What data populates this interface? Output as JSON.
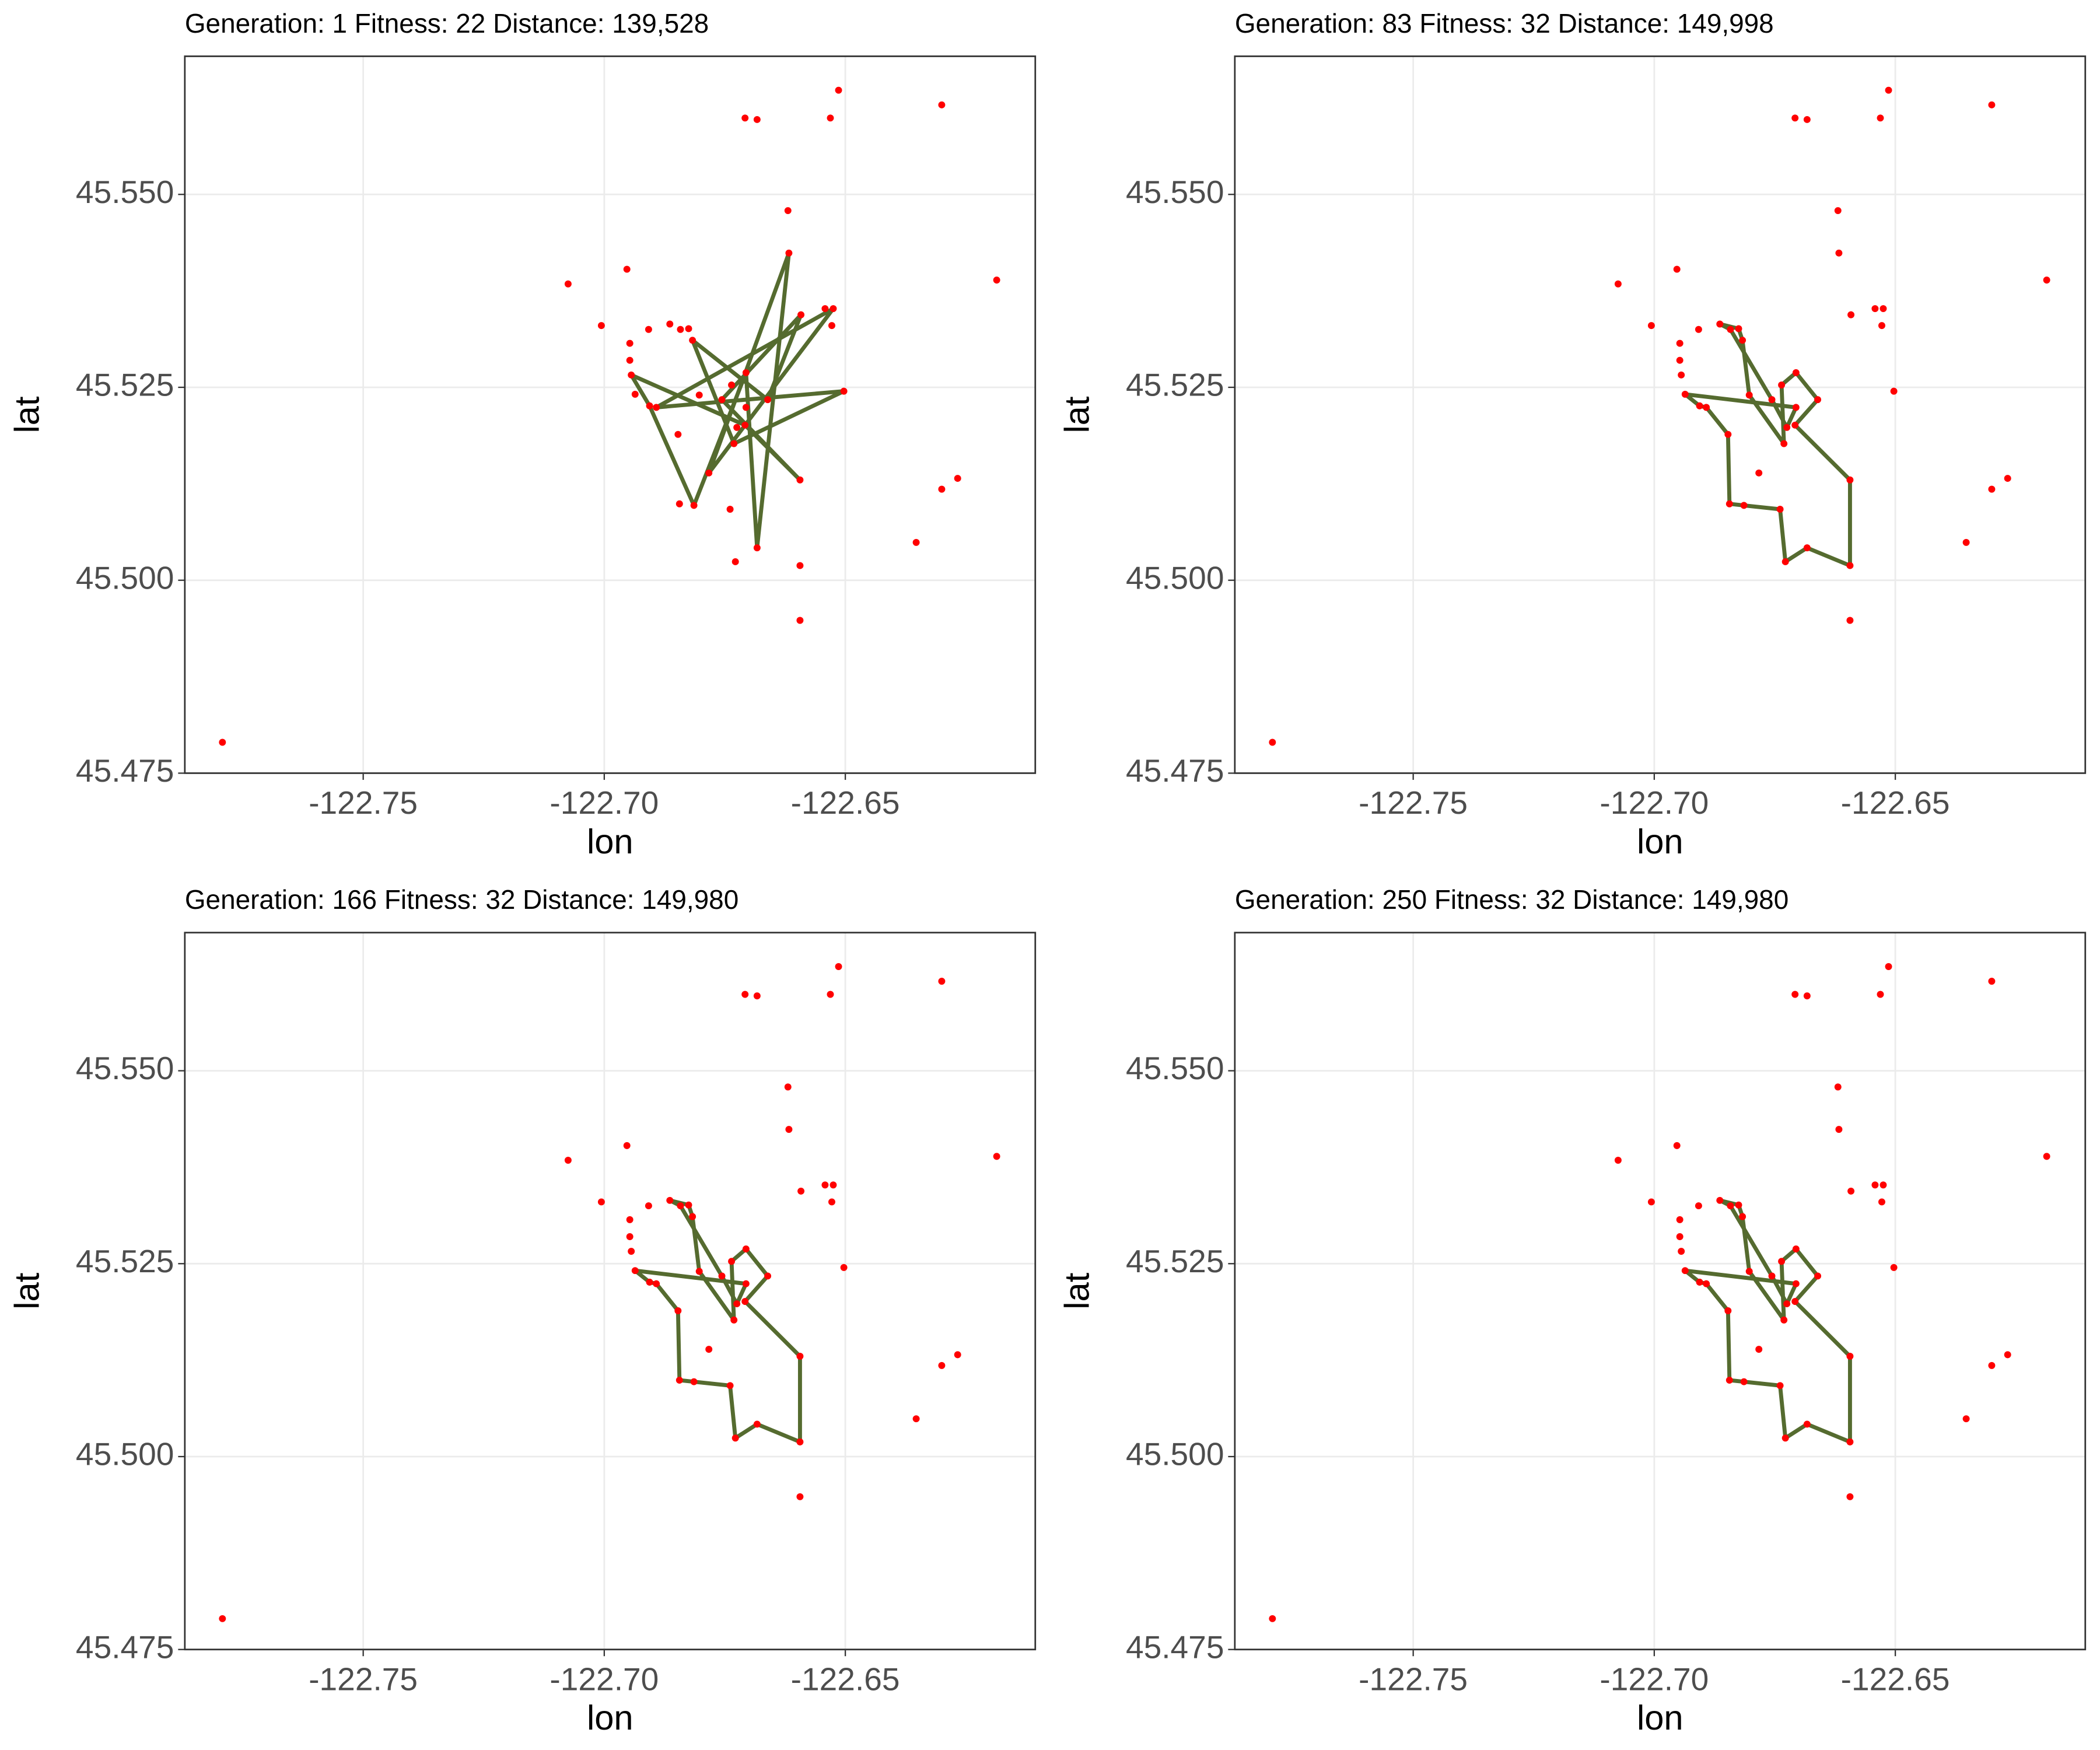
{
  "chart_data": [
    {
      "type": "scatter",
      "title": "Generation: 1 Fitness: 22 Distance: 139,528",
      "xlabel": "lon",
      "ylabel": "lat",
      "xlim": [
        -122.787,
        -122.6106
      ],
      "ylim": [
        45.475,
        45.5679
      ],
      "xticks": [
        -122.75,
        {
          "value": -122.7,
          "label": "-122.70"
        },
        -122.65
      ],
      "yticks": [
        45.475,
        {
          "value": 45.5,
          "label": "45.500"
        },
        45.525,
        {
          "value": 45.55,
          "label": "45.550"
        }
      ],
      "grid": true,
      "point_color": "#ff0000",
      "route_color": "#556b2f",
      "x": [
        -122.7792,
        -122.7075,
        -122.7006,
        -122.6953,
        -122.6947,
        -122.6947,
        -122.6944,
        -122.6936,
        -122.6908,
        -122.6864,
        -122.6842,
        -122.6825,
        -122.6906,
        -122.6892,
        -122.6847,
        -122.6803,
        -122.6844,
        -122.6814,
        -122.6783,
        -122.6739,
        -122.6728,
        -122.6683,
        -122.6594,
        -122.6594,
        -122.6594,
        -122.6731,
        -122.6725,
        -122.6708,
        -122.6706,
        -122.6706,
        -122.6661,
        -122.6736,
        -122.6756,
        -122.6817,
        -122.6619,
        -122.6617,
        -122.6592,
        -122.6542,
        -122.6525,
        -122.6528,
        -122.6503,
        -122.6708,
        -122.6683,
        -122.6531,
        -122.6514,
        -122.63,
        -122.6186,
        -122.6267,
        -122.63,
        -122.6353
      ],
      "y": [
        45.479,
        45.5384,
        45.533,
        45.5403,
        45.5307,
        45.5285,
        45.5266,
        45.5241,
        45.5325,
        45.5332,
        45.5325,
        45.5326,
        45.5226,
        45.5224,
        45.5189,
        45.524,
        45.5099,
        45.5097,
        45.5139,
        45.5092,
        45.5024,
        45.5042,
        45.5019,
        45.4948,
        45.513,
        45.5177,
        45.5198,
        45.5201,
        45.5224,
        45.5269,
        45.5234,
        45.5253,
        45.5234,
        45.5311,
        45.5479,
        45.5424,
        45.5344,
        45.5352,
        45.5352,
        45.533,
        45.5245,
        45.5599,
        45.5597,
        45.5599,
        45.5635,
        45.5616,
        45.5389,
        45.5132,
        45.5118,
        45.5049
      ],
      "route": {
        "x": [
          -122.6944,
          -122.6906,
          -122.6814,
          -122.6706,
          -122.6683,
          -122.6617,
          -122.6783,
          -122.6525,
          -122.6892,
          -122.6503,
          -122.6731,
          -122.6817,
          -122.6661,
          -122.6592,
          -122.6756,
          -122.6594,
          -122.6708
        ],
        "y": [
          45.5266,
          45.5226,
          45.5097,
          45.5269,
          45.5042,
          45.5424,
          45.5139,
          45.5352,
          45.5224,
          45.5245,
          45.5177,
          45.5311,
          45.5234,
          45.5344,
          45.5234,
          45.513,
          45.5201
        ]
      }
    },
    {
      "type": "scatter",
      "title": "Generation: 83 Fitness: 32 Distance: 149,998",
      "xlabel": "lon",
      "ylabel": "lat",
      "xlim": [
        -122.787,
        -122.6106
      ],
      "ylim": [
        45.475,
        45.5679
      ],
      "xticks": [
        -122.75,
        {
          "value": -122.7,
          "label": "-122.70"
        },
        -122.65
      ],
      "yticks": [
        45.475,
        {
          "value": 45.5,
          "label": "45.500"
        },
        45.525,
        {
          "value": 45.55,
          "label": "45.550"
        }
      ],
      "grid": true,
      "point_color": "#ff0000",
      "route_color": "#556b2f",
      "x": [
        -122.7792,
        -122.7075,
        -122.7006,
        -122.6953,
        -122.6947,
        -122.6947,
        -122.6944,
        -122.6936,
        -122.6908,
        -122.6864,
        -122.6842,
        -122.6825,
        -122.6906,
        -122.6892,
        -122.6847,
        -122.6803,
        -122.6844,
        -122.6814,
        -122.6783,
        -122.6739,
        -122.6728,
        -122.6683,
        -122.6594,
        -122.6594,
        -122.6594,
        -122.6731,
        -122.6725,
        -122.6708,
        -122.6706,
        -122.6706,
        -122.6661,
        -122.6736,
        -122.6756,
        -122.6817,
        -122.6619,
        -122.6617,
        -122.6592,
        -122.6542,
        -122.6525,
        -122.6528,
        -122.6503,
        -122.6708,
        -122.6683,
        -122.6531,
        -122.6514,
        -122.63,
        -122.6186,
        -122.6267,
        -122.63,
        -122.6353
      ],
      "y": [
        45.479,
        45.5384,
        45.533,
        45.5403,
        45.5307,
        45.5285,
        45.5266,
        45.5241,
        45.5325,
        45.5332,
        45.5325,
        45.5326,
        45.5226,
        45.5224,
        45.5189,
        45.524,
        45.5099,
        45.5097,
        45.5139,
        45.5092,
        45.5024,
        45.5042,
        45.5019,
        45.4948,
        45.513,
        45.5177,
        45.5198,
        45.5201,
        45.5224,
        45.5269,
        45.5234,
        45.5253,
        45.5234,
        45.5311,
        45.5479,
        45.5424,
        45.5344,
        45.5352,
        45.5352,
        45.533,
        45.5245,
        45.5599,
        45.5597,
        45.5599,
        45.5635,
        45.5616,
        45.5389,
        45.5132,
        45.5118,
        45.5049
      ],
      "route": {
        "x": [
          -122.6936,
          -122.6906,
          -122.6892,
          -122.6847,
          -122.6844,
          -122.6814,
          -122.6739,
          -122.6728,
          -122.6683,
          -122.6594,
          -122.6594,
          -122.6708,
          -122.6661,
          -122.6706,
          -122.6736,
          -122.6731,
          -122.6803,
          -122.6817,
          -122.6825,
          -122.6864,
          -122.6842,
          -122.6756,
          -122.6725,
          -122.6706
        ],
        "y": [
          45.5241,
          45.5226,
          45.5224,
          45.5189,
          45.5099,
          45.5097,
          45.5092,
          45.5024,
          45.5042,
          45.5019,
          45.513,
          45.5201,
          45.5234,
          45.5269,
          45.5253,
          45.5177,
          45.524,
          45.5311,
          45.5326,
          45.5332,
          45.5325,
          45.5234,
          45.5198,
          45.5224
        ]
      }
    },
    {
      "type": "scatter",
      "title": "Generation: 166 Fitness: 32 Distance: 149,980",
      "xlabel": "lon",
      "ylabel": "lat",
      "xlim": [
        -122.787,
        -122.6106
      ],
      "ylim": [
        45.475,
        45.5679
      ],
      "xticks": [
        -122.75,
        {
          "value": -122.7,
          "label": "-122.70"
        },
        -122.65
      ],
      "yticks": [
        45.475,
        {
          "value": 45.5,
          "label": "45.500"
        },
        45.525,
        {
          "value": 45.55,
          "label": "45.550"
        }
      ],
      "grid": true,
      "point_color": "#ff0000",
      "route_color": "#556b2f",
      "x": [
        -122.7792,
        -122.7075,
        -122.7006,
        -122.6953,
        -122.6947,
        -122.6947,
        -122.6944,
        -122.6936,
        -122.6908,
        -122.6864,
        -122.6842,
        -122.6825,
        -122.6906,
        -122.6892,
        -122.6847,
        -122.6803,
        -122.6844,
        -122.6814,
        -122.6783,
        -122.6739,
        -122.6728,
        -122.6683,
        -122.6594,
        -122.6594,
        -122.6594,
        -122.6731,
        -122.6725,
        -122.6708,
        -122.6706,
        -122.6706,
        -122.6661,
        -122.6736,
        -122.6756,
        -122.6817,
        -122.6619,
        -122.6617,
        -122.6592,
        -122.6542,
        -122.6525,
        -122.6528,
        -122.6503,
        -122.6708,
        -122.6683,
        -122.6531,
        -122.6514,
        -122.63,
        -122.6186,
        -122.6267,
        -122.63,
        -122.6353
      ],
      "y": [
        45.479,
        45.5384,
        45.533,
        45.5403,
        45.5307,
        45.5285,
        45.5266,
        45.5241,
        45.5325,
        45.5332,
        45.5325,
        45.5326,
        45.5226,
        45.5224,
        45.5189,
        45.524,
        45.5099,
        45.5097,
        45.5139,
        45.5092,
        45.5024,
        45.5042,
        45.5019,
        45.4948,
        45.513,
        45.5177,
        45.5198,
        45.5201,
        45.5224,
        45.5269,
        45.5234,
        45.5253,
        45.5234,
        45.5311,
        45.5479,
        45.5424,
        45.5344,
        45.5352,
        45.5352,
        45.533,
        45.5245,
        45.5599,
        45.5597,
        45.5599,
        45.5635,
        45.5616,
        45.5389,
        45.5132,
        45.5118,
        45.5049
      ],
      "route": {
        "x": [
          -122.6936,
          -122.6906,
          -122.6892,
          -122.6847,
          -122.6844,
          -122.6814,
          -122.6739,
          -122.6728,
          -122.6683,
          -122.6594,
          -122.6594,
          -122.6708,
          -122.6661,
          -122.6706,
          -122.6736,
          -122.6731,
          -122.6803,
          -122.6817,
          -122.6825,
          -122.6864,
          -122.6842,
          -122.6756,
          -122.6725,
          -122.6706
        ],
        "y": [
          45.5241,
          45.5226,
          45.5224,
          45.5189,
          45.5099,
          45.5097,
          45.5092,
          45.5024,
          45.5042,
          45.5019,
          45.513,
          45.5201,
          45.5234,
          45.5269,
          45.5253,
          45.5177,
          45.524,
          45.5311,
          45.5326,
          45.5332,
          45.5325,
          45.5234,
          45.5198,
          45.5224
        ]
      }
    },
    {
      "type": "scatter",
      "title": "Generation: 250 Fitness: 32 Distance: 149,980",
      "xlabel": "lon",
      "ylabel": "lat",
      "xlim": [
        -122.787,
        -122.6106
      ],
      "ylim": [
        45.475,
        45.5679
      ],
      "xticks": [
        -122.75,
        {
          "value": -122.7,
          "label": "-122.70"
        },
        -122.65
      ],
      "yticks": [
        45.475,
        {
          "value": 45.5,
          "label": "45.500"
        },
        45.525,
        {
          "value": 45.55,
          "label": "45.550"
        }
      ],
      "grid": true,
      "point_color": "#ff0000",
      "route_color": "#556b2f",
      "x": [
        -122.7792,
        -122.7075,
        -122.7006,
        -122.6953,
        -122.6947,
        -122.6947,
        -122.6944,
        -122.6936,
        -122.6908,
        -122.6864,
        -122.6842,
        -122.6825,
        -122.6906,
        -122.6892,
        -122.6847,
        -122.6803,
        -122.6844,
        -122.6814,
        -122.6783,
        -122.6739,
        -122.6728,
        -122.6683,
        -122.6594,
        -122.6594,
        -122.6594,
        -122.6731,
        -122.6725,
        -122.6708,
        -122.6706,
        -122.6706,
        -122.6661,
        -122.6736,
        -122.6756,
        -122.6817,
        -122.6619,
        -122.6617,
        -122.6592,
        -122.6542,
        -122.6525,
        -122.6528,
        -122.6503,
        -122.6708,
        -122.6683,
        -122.6531,
        -122.6514,
        -122.63,
        -122.6186,
        -122.6267,
        -122.63,
        -122.6353
      ],
      "y": [
        45.479,
        45.5384,
        45.533,
        45.5403,
        45.5307,
        45.5285,
        45.5266,
        45.5241,
        45.5325,
        45.5332,
        45.5325,
        45.5326,
        45.5226,
        45.5224,
        45.5189,
        45.524,
        45.5099,
        45.5097,
        45.5139,
        45.5092,
        45.5024,
        45.5042,
        45.5019,
        45.4948,
        45.513,
        45.5177,
        45.5198,
        45.5201,
        45.5224,
        45.5269,
        45.5234,
        45.5253,
        45.5234,
        45.5311,
        45.5479,
        45.5424,
        45.5344,
        45.5352,
        45.5352,
        45.533,
        45.5245,
        45.5599,
        45.5597,
        45.5599,
        45.5635,
        45.5616,
        45.5389,
        45.5132,
        45.5118,
        45.5049
      ],
      "route": {
        "x": [
          -122.6936,
          -122.6906,
          -122.6892,
          -122.6847,
          -122.6844,
          -122.6814,
          -122.6739,
          -122.6728,
          -122.6683,
          -122.6594,
          -122.6594,
          -122.6708,
          -122.6661,
          -122.6706,
          -122.6736,
          -122.6731,
          -122.6803,
          -122.6817,
          -122.6825,
          -122.6864,
          -122.6842,
          -122.6756,
          -122.6725,
          -122.6706
        ],
        "y": [
          45.5241,
          45.5226,
          45.5224,
          45.5189,
          45.5099,
          45.5097,
          45.5092,
          45.5024,
          45.5042,
          45.5019,
          45.513,
          45.5201,
          45.5234,
          45.5269,
          45.5253,
          45.5177,
          45.524,
          45.5311,
          45.5326,
          45.5332,
          45.5325,
          45.5234,
          45.5198,
          45.5224
        ]
      }
    }
  ]
}
